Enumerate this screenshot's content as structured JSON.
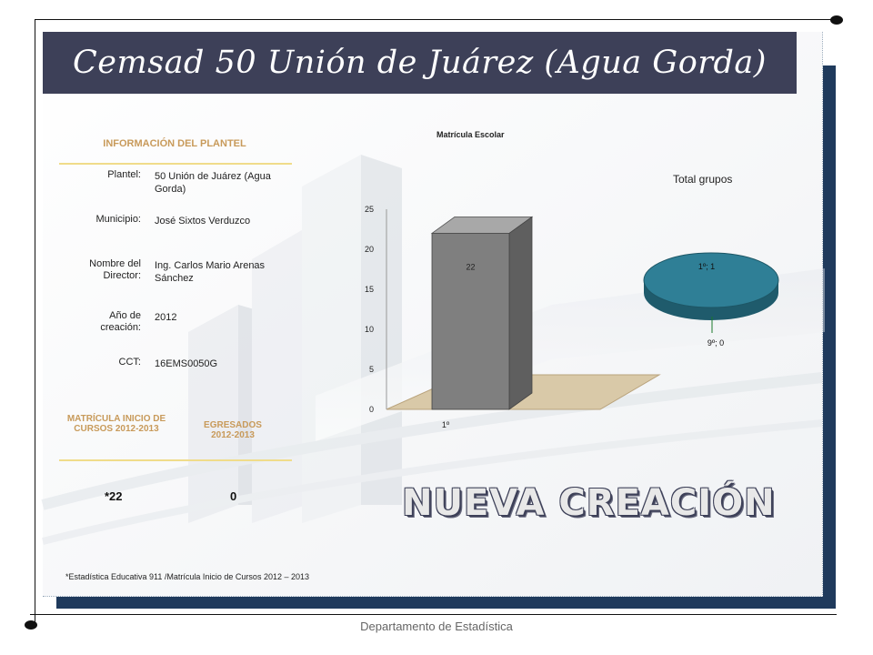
{
  "title": "Cemsad 50 Unión de Juárez (Agua Gorda)",
  "info": {
    "heading": "INFORMACIÓN DEL PLANTEL",
    "rows": [
      {
        "label": "Plantel:",
        "value": "50 Unión de Juárez (Agua Gorda)"
      },
      {
        "label": "Municipio:",
        "value": "José Sixtos Verduzco"
      },
      {
        "label": "Nombre del Director:",
        "value": "Ing. Carlos Mario Arenas Sánchez"
      },
      {
        "label": "Año de creación:",
        "value": "2012"
      },
      {
        "label": "CCT:",
        "value": "16EMS0050G"
      }
    ]
  },
  "stats": {
    "matricula_heading": "MATRÍCULA INICIO DE CURSOS 2012-2013",
    "egresados_heading": "EGRESADOS 2012-2013",
    "matricula_value": "*22",
    "egresados_value": "0"
  },
  "footnote": "*Estadística Educativa 911 /Matrícula Inicio de Cursos 2012 – 2013",
  "badge": "NUEVA CREACIÓN",
  "footer": "Departamento de Estadística",
  "colors": {
    "title_bar": "#3d4058",
    "accent_gold": "#c89a5a",
    "shadow_panel": "#1f3a5c",
    "bar": "#7f7f7f",
    "pie": "#2f7f96"
  },
  "chart_data": [
    {
      "type": "bar",
      "title": "Matrícula Escolar",
      "categories": [
        "1º"
      ],
      "values": [
        22
      ],
      "data_labels": [
        "22"
      ],
      "ylim": [
        0,
        25
      ],
      "yticks": [
        0,
        5,
        10,
        15,
        20,
        25
      ],
      "grid": false,
      "style": "3d"
    },
    {
      "type": "pie",
      "title": "Total grupos",
      "slices": [
        {
          "label": "1º; 1",
          "category": "1º",
          "value": 1
        },
        {
          "label": "9º; 0",
          "category": "9º",
          "value": 0
        }
      ],
      "style": "3d"
    }
  ]
}
